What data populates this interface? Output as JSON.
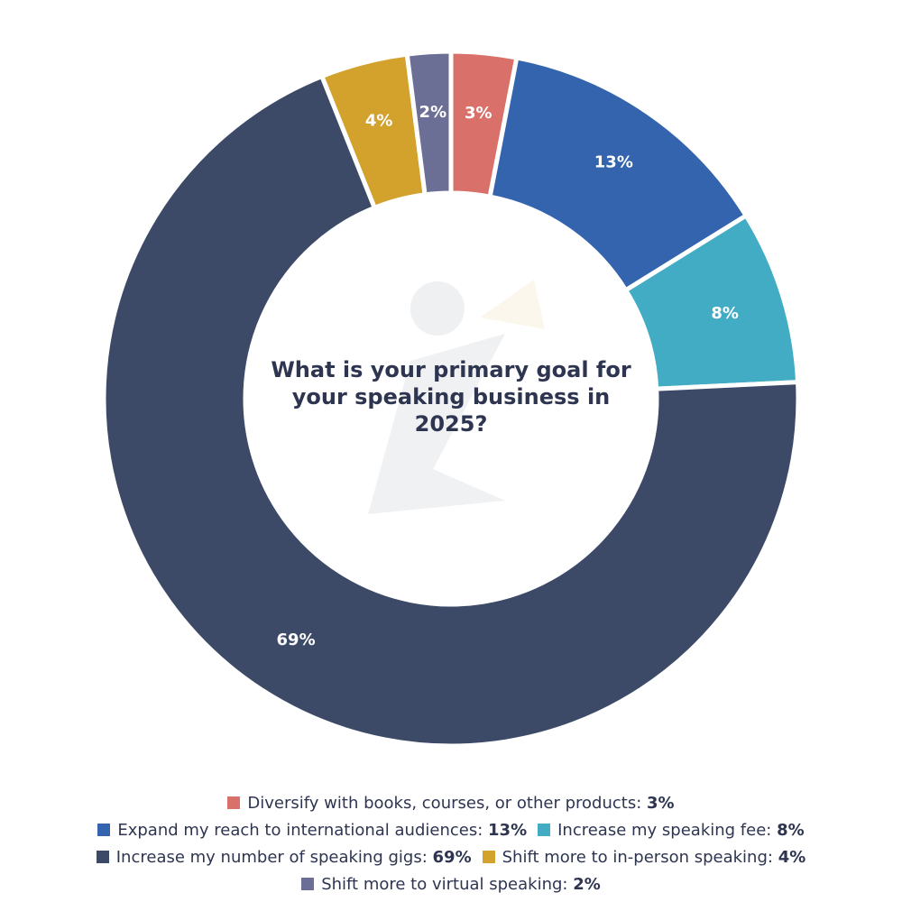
{
  "chart_data": {
    "type": "pie",
    "subtype": "donut",
    "title": "What is your primary goal for your speaking business in 2025?",
    "slices": [
      {
        "label": "Diversify with books, courses, or other products",
        "value": 3,
        "display": "3%",
        "color": "#d9706a"
      },
      {
        "label": "Expand my reach to international audiences",
        "value": 13,
        "display": "13%",
        "color": "#3364ad"
      },
      {
        "label": "Increase my speaking fee",
        "value": 8,
        "display": "8%",
        "color": "#41acc4"
      },
      {
        "label": "Increase my number of speaking gigs",
        "value": 69,
        "display": "69%",
        "color": "#3c4a68"
      },
      {
        "label": "Shift more to in-person speaking",
        "value": 4,
        "display": "4%",
        "color": "#d2a22c"
      },
      {
        "label": "Shift more to virtual speaking",
        "value": 2,
        "display": "2%",
        "color": "#6b6f95"
      }
    ],
    "legend_position": "bottom",
    "legend_rows": [
      [
        0
      ],
      [
        1,
        2
      ],
      [
        3,
        4
      ],
      [
        5
      ]
    ]
  }
}
